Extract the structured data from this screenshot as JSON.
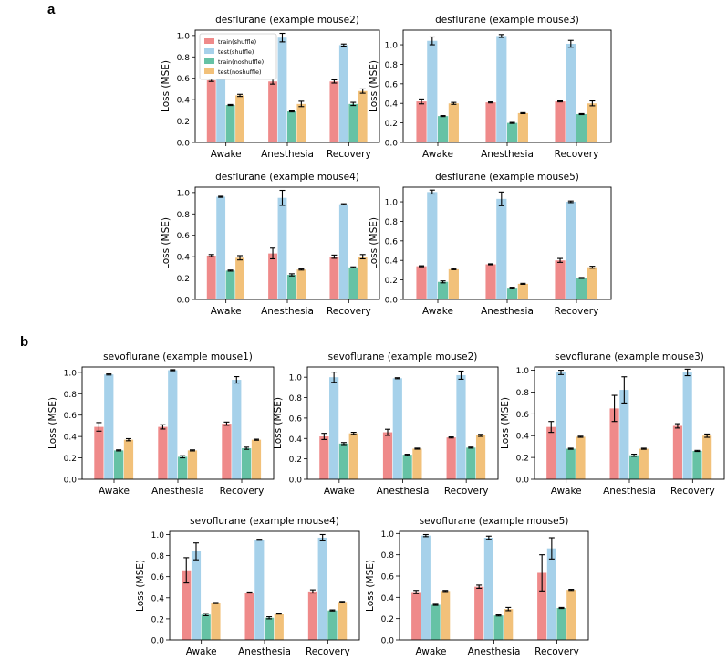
{
  "panels": {
    "a": "a",
    "b": "b"
  },
  "colors": {
    "train_shuffle": "#ef8a8a",
    "test_shuffle": "#a6d1ea",
    "train_noshuffle": "#66c2a5",
    "test_noshuffle": "#f2c17a"
  },
  "chart_data": [
    {
      "type": "bar",
      "title": "desflurane (example mouse2)",
      "ylabel": "Loss (MSE)",
      "categories": [
        "Awake",
        "Anesthesia",
        "Recovery"
      ],
      "ylim": [
        0,
        1.05
      ],
      "yticks": [
        0.0,
        0.2,
        0.4,
        0.6,
        0.8,
        1.0
      ],
      "legend": "top-left",
      "series": [
        {
          "name": "train(shuffle)",
          "values": [
            0.58,
            0.57,
            0.57
          ],
          "errors": [
            0.01,
            0.025,
            0.015
          ]
        },
        {
          "name": "test(shuffle)",
          "values": [
            0.92,
            0.98,
            0.91
          ],
          "errors": [
            0.03,
            0.04,
            0.01
          ]
        },
        {
          "name": "train(noshuffle)",
          "values": [
            0.35,
            0.29,
            0.36
          ],
          "errors": [
            0.005,
            0.005,
            0.015
          ]
        },
        {
          "name": "test(noshuffle)",
          "values": [
            0.44,
            0.36,
            0.48
          ],
          "errors": [
            0.01,
            0.025,
            0.02
          ]
        }
      ]
    },
    {
      "type": "bar",
      "title": "desflurane (example mouse3)",
      "ylabel": "Loss (MSE)",
      "categories": [
        "Awake",
        "Anesthesia",
        "Recovery"
      ],
      "ylim": [
        0,
        1.15
      ],
      "yticks": [
        0.0,
        0.2,
        0.4,
        0.6,
        0.8,
        1.0
      ],
      "series": [
        {
          "name": "train(shuffle)",
          "values": [
            0.42,
            0.41,
            0.42
          ],
          "errors": [
            0.025,
            0.005,
            0.005
          ]
        },
        {
          "name": "test(shuffle)",
          "values": [
            1.04,
            1.09,
            1.01
          ],
          "errors": [
            0.04,
            0.015,
            0.035
          ]
        },
        {
          "name": "train(noshuffle)",
          "values": [
            0.27,
            0.2,
            0.29
          ],
          "errors": [
            0.005,
            0.005,
            0.005
          ]
        },
        {
          "name": "test(noshuffle)",
          "values": [
            0.4,
            0.3,
            0.4
          ],
          "errors": [
            0.01,
            0.005,
            0.025
          ]
        }
      ]
    },
    {
      "type": "bar",
      "title": "desflurane (example mouse4)",
      "ylabel": "Loss (MSE)",
      "categories": [
        "Awake",
        "Anesthesia",
        "Recovery"
      ],
      "ylim": [
        0,
        1.05
      ],
      "yticks": [
        0.0,
        0.2,
        0.4,
        0.6,
        0.8,
        1.0
      ],
      "series": [
        {
          "name": "train(shuffle)",
          "values": [
            0.41,
            0.43,
            0.4
          ],
          "errors": [
            0.01,
            0.05,
            0.015
          ]
        },
        {
          "name": "test(shuffle)",
          "values": [
            0.96,
            0.95,
            0.89
          ],
          "errors": [
            0.005,
            0.07,
            0.005
          ]
        },
        {
          "name": "train(noshuffle)",
          "values": [
            0.27,
            0.23,
            0.3
          ],
          "errors": [
            0.005,
            0.01,
            0.005
          ]
        },
        {
          "name": "test(noshuffle)",
          "values": [
            0.39,
            0.28,
            0.4
          ],
          "errors": [
            0.02,
            0.005,
            0.02
          ]
        }
      ]
    },
    {
      "type": "bar",
      "title": "desflurane (example mouse5)",
      "ylabel": "Loss (MSE)",
      "categories": [
        "Awake",
        "Anesthesia",
        "Recovery"
      ],
      "ylim": [
        0,
        1.15
      ],
      "yticks": [
        0.0,
        0.2,
        0.4,
        0.6,
        0.8,
        1.0
      ],
      "series": [
        {
          "name": "train(shuffle)",
          "values": [
            0.34,
            0.36,
            0.4
          ],
          "errors": [
            0.005,
            0.005,
            0.02
          ]
        },
        {
          "name": "test(shuffle)",
          "values": [
            1.1,
            1.03,
            1.0
          ],
          "errors": [
            0.02,
            0.07,
            0.008
          ]
        },
        {
          "name": "train(noshuffle)",
          "values": [
            0.18,
            0.12,
            0.22
          ],
          "errors": [
            0.01,
            0.005,
            0.005
          ]
        },
        {
          "name": "test(noshuffle)",
          "values": [
            0.31,
            0.16,
            0.33
          ],
          "errors": [
            0.005,
            0.005,
            0.01
          ]
        }
      ]
    },
    {
      "type": "bar",
      "title": "sevoflurane (example mouse1)",
      "ylabel": "Loss (MSE)",
      "categories": [
        "Awake",
        "Anesthesia",
        "Recovery"
      ],
      "ylim": [
        0,
        1.05
      ],
      "yticks": [
        0.0,
        0.2,
        0.4,
        0.6,
        0.8,
        1.0
      ],
      "series": [
        {
          "name": "train(shuffle)",
          "values": [
            0.49,
            0.49,
            0.52
          ],
          "errors": [
            0.04,
            0.02,
            0.015
          ]
        },
        {
          "name": "test(shuffle)",
          "values": [
            0.98,
            1.02,
            0.93
          ],
          "errors": [
            0.005,
            0.005,
            0.03
          ]
        },
        {
          "name": "train(noshuffle)",
          "values": [
            0.27,
            0.21,
            0.29
          ],
          "errors": [
            0.005,
            0.01,
            0.01
          ]
        },
        {
          "name": "test(noshuffle)",
          "values": [
            0.37,
            0.27,
            0.37
          ],
          "errors": [
            0.01,
            0.005,
            0.005
          ]
        }
      ]
    },
    {
      "type": "bar",
      "title": "sevoflurane (example mouse2)",
      "ylabel": "Loss (MSE)",
      "categories": [
        "Awake",
        "Anesthesia",
        "Recovery"
      ],
      "ylim": [
        0,
        1.1
      ],
      "yticks": [
        0.0,
        0.2,
        0.4,
        0.6,
        0.8,
        1.0
      ],
      "series": [
        {
          "name": "train(shuffle)",
          "values": [
            0.42,
            0.46,
            0.41
          ],
          "errors": [
            0.03,
            0.03,
            0.005
          ]
        },
        {
          "name": "test(shuffle)",
          "values": [
            1.0,
            0.99,
            1.02
          ],
          "errors": [
            0.05,
            0.005,
            0.04
          ]
        },
        {
          "name": "train(noshuffle)",
          "values": [
            0.35,
            0.24,
            0.31
          ],
          "errors": [
            0.01,
            0.005,
            0.005
          ]
        },
        {
          "name": "test(noshuffle)",
          "values": [
            0.45,
            0.3,
            0.43
          ],
          "errors": [
            0.01,
            0.005,
            0.01
          ]
        }
      ]
    },
    {
      "type": "bar",
      "title": "sevoflurane (example mouse3)",
      "ylabel": "Loss (MSE)",
      "categories": [
        "Awake",
        "Anesthesia",
        "Recovery"
      ],
      "ylim": [
        0,
        1.03
      ],
      "yticks": [
        0.0,
        0.2,
        0.4,
        0.6,
        0.8,
        1.0
      ],
      "series": [
        {
          "name": "train(shuffle)",
          "values": [
            0.48,
            0.65,
            0.49
          ],
          "errors": [
            0.05,
            0.12,
            0.02
          ]
        },
        {
          "name": "test(shuffle)",
          "values": [
            0.98,
            0.82,
            0.98
          ],
          "errors": [
            0.02,
            0.12,
            0.03
          ]
        },
        {
          "name": "train(noshuffle)",
          "values": [
            0.28,
            0.22,
            0.26
          ],
          "errors": [
            0.005,
            0.01,
            0.005
          ]
        },
        {
          "name": "test(noshuffle)",
          "values": [
            0.39,
            0.28,
            0.4
          ],
          "errors": [
            0.005,
            0.005,
            0.015
          ]
        }
      ]
    },
    {
      "type": "bar",
      "title": "sevoflurane (example mouse4)",
      "ylabel": "Loss (MSE)",
      "categories": [
        "Awake",
        "Anesthesia",
        "Recovery"
      ],
      "ylim": [
        0,
        1.03
      ],
      "yticks": [
        0.0,
        0.2,
        0.4,
        0.6,
        0.8,
        1.0
      ],
      "series": [
        {
          "name": "train(shuffle)",
          "values": [
            0.66,
            0.45,
            0.46
          ],
          "errors": [
            0.12,
            0.005,
            0.015
          ]
        },
        {
          "name": "test(shuffle)",
          "values": [
            0.84,
            0.95,
            0.97
          ],
          "errors": [
            0.08,
            0.005,
            0.03
          ]
        },
        {
          "name": "train(noshuffle)",
          "values": [
            0.24,
            0.21,
            0.28
          ],
          "errors": [
            0.01,
            0.01,
            0.005
          ]
        },
        {
          "name": "test(noshuffle)",
          "values": [
            0.35,
            0.25,
            0.36
          ],
          "errors": [
            0.005,
            0.005,
            0.005
          ]
        }
      ]
    },
    {
      "type": "bar",
      "title": "sevoflurane (example mouse5)",
      "ylabel": "Loss (MSE)",
      "categories": [
        "Awake",
        "Anesthesia",
        "Recovery"
      ],
      "ylim": [
        0,
        1.02
      ],
      "yticks": [
        0.0,
        0.2,
        0.4,
        0.6,
        0.8,
        1.0
      ],
      "series": [
        {
          "name": "train(shuffle)",
          "values": [
            0.45,
            0.5,
            0.63
          ],
          "errors": [
            0.015,
            0.015,
            0.17
          ]
        },
        {
          "name": "test(shuffle)",
          "values": [
            0.98,
            0.96,
            0.86
          ],
          "errors": [
            0.01,
            0.015,
            0.1
          ]
        },
        {
          "name": "train(noshuffle)",
          "values": [
            0.33,
            0.23,
            0.3
          ],
          "errors": [
            0.005,
            0.005,
            0.005
          ]
        },
        {
          "name": "test(noshuffle)",
          "values": [
            0.46,
            0.29,
            0.47
          ],
          "errors": [
            0.005,
            0.015,
            0.005
          ]
        }
      ]
    }
  ]
}
